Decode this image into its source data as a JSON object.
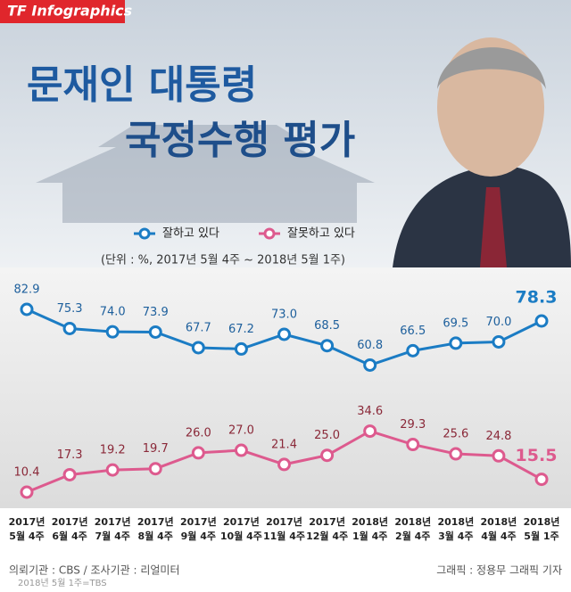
{
  "brand": "TF Infographics",
  "chart_data": {
    "type": "line",
    "title": [
      "문재인 대통령",
      "국정수행 평가"
    ],
    "subtitle": "(단위 : %, 2017년 5월 4주 ~ 2018년 5월 1주)",
    "categories": [
      [
        "2017년",
        "5월 4주"
      ],
      [
        "2017년",
        "6월 4주"
      ],
      [
        "2017년",
        "7월 4주"
      ],
      [
        "2017년",
        "8월 4주"
      ],
      [
        "2017년",
        "9월 4주"
      ],
      [
        "2017년",
        "10월 4주"
      ],
      [
        "2017년",
        "11월 4주"
      ],
      [
        "2017년",
        "12월 4주"
      ],
      [
        "2018년",
        "1월 4주"
      ],
      [
        "2018년",
        "2월 4주"
      ],
      [
        "2018년",
        "3월 4주"
      ],
      [
        "2018년",
        "4월 4주"
      ],
      [
        "2018년",
        "5월 1주"
      ]
    ],
    "series": [
      {
        "name": "잘하고 있다",
        "color": "#1b7cc4",
        "label_color": "#1d5f9c",
        "values": [
          82.9,
          75.3,
          74.0,
          73.9,
          67.7,
          67.2,
          73.0,
          68.5,
          60.8,
          66.5,
          69.5,
          70.0,
          78.3
        ],
        "value_labels": [
          "82.9",
          "75.3",
          "74.0",
          "73.9",
          "67.7",
          "67.2",
          "73.0",
          "68.5",
          "60.8",
          "66.5",
          "69.5",
          "70.0",
          "78.3"
        ]
      },
      {
        "name": "잘못하고 있다",
        "color": "#dd5a8e",
        "label_color": "#8a2838",
        "values": [
          10.4,
          17.3,
          19.2,
          19.7,
          26.0,
          27.0,
          21.4,
          25.0,
          34.6,
          29.3,
          25.6,
          24.8,
          15.5
        ],
        "value_labels": [
          "10.4",
          "17.3",
          "19.2",
          "19.7",
          "26.0",
          "27.0",
          "21.4",
          "25.0",
          "34.6",
          "29.3",
          "25.6",
          "24.8",
          "15.5"
        ]
      }
    ]
  },
  "footer": {
    "source": "의뢰기관 : CBS / 조사기관 : 리얼미터",
    "credit": "그래픽 : 정용무 그래픽 기자",
    "note": "2018년 5월 1주=TBS"
  }
}
